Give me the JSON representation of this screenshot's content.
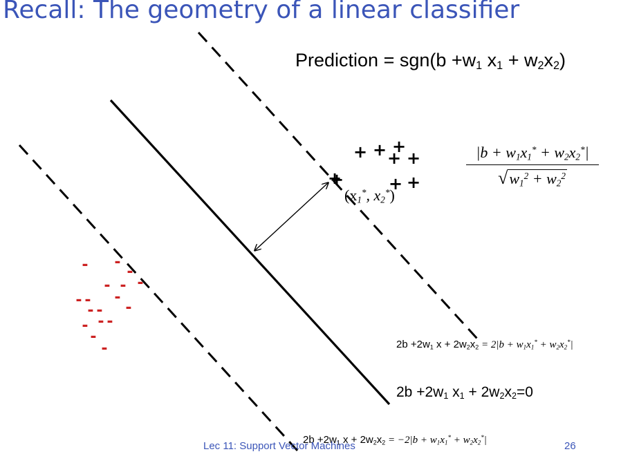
{
  "slide": {
    "title": "Recall: The geometry of a linear classifier",
    "prediction": {
      "lead": "Prediction = sgn(b +w",
      "sub1": "1",
      "mid1": " x",
      "sub2": "1",
      "mid2": " + w",
      "sub3": "2",
      "mid3": "x",
      "sub4": "2",
      "tail": ")"
    },
    "point_label": {
      "open": "(x",
      "sub1": "1",
      "sup1": "*",
      "comma": ", x",
      "sub2": "2",
      "sup2": "*",
      "close": ")"
    },
    "distance_formula": {
      "num_a": "|b + w",
      "num_b": "1",
      "num_c": "x",
      "num_d": "1",
      "num_e": "*",
      "num_f": " + w",
      "num_g": "2",
      "num_h": "x",
      "num_i": "2",
      "num_j": "*",
      "num_k": "|",
      "den_radical": "√",
      "den_a": "w",
      "den_b": "1",
      "den_c": "2",
      "den_d": " + w",
      "den_e": "2",
      "den_f": "2"
    },
    "eq_upper": {
      "lhs_a": "2b +2w",
      "lhs_b": "1",
      "lhs_c": " x + 2w",
      "lhs_d": "2",
      "lhs_e": "x",
      "lhs_f": "2",
      "rhs_a": " = 2|b + w",
      "rhs_b": "1",
      "rhs_c": "x",
      "rhs_d": "1",
      "rhs_e": "*",
      "rhs_f": " + w",
      "rhs_g": "2",
      "rhs_h": "x",
      "rhs_i": "2",
      "rhs_j": "*",
      "rhs_k": "|"
    },
    "eq_middle": {
      "a": "2b +2w",
      "b": "1",
      "c": " x",
      "d": "1",
      "e": " + 2w",
      "f": "2",
      "g": "x",
      "h": "2",
      "i": "=0"
    },
    "eq_lower": {
      "lhs_a": "2b +2w",
      "lhs_b": "1",
      "lhs_c": " x + 2w",
      "lhs_d": "2",
      "lhs_e": "x",
      "lhs_f": "2",
      "rhs_a": " = −2|b + w",
      "rhs_b": "1",
      "rhs_c": "x",
      "rhs_d": "1",
      "rhs_e": "*",
      "rhs_f": " + w",
      "rhs_g": "2",
      "rhs_h": "x",
      "rhs_i": "2",
      "rhs_j": "*",
      "rhs_k": "|"
    },
    "positive_symbol": "+",
    "negative_symbol": "-",
    "footer": {
      "course": "Lec 11: Support Vector Machines",
      "page": "26"
    },
    "colors": {
      "title": "#3b55b8",
      "footer": "#3b55b8",
      "negative": "#cc2222",
      "lines": "#000000"
    },
    "positive_point_count": 9,
    "negative_point_count": 16
  }
}
